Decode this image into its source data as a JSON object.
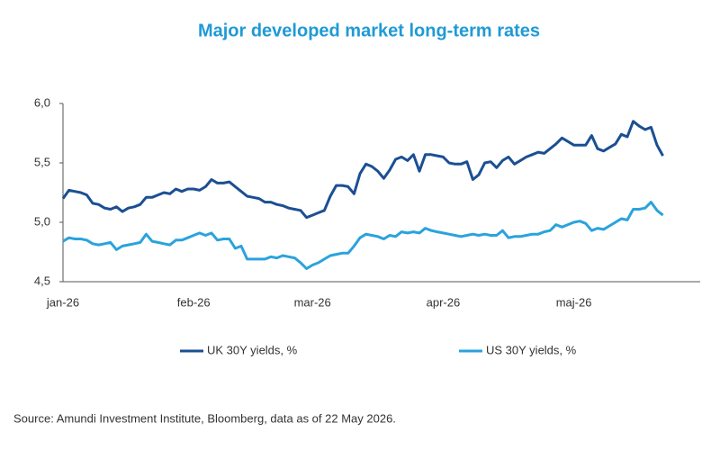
{
  "chart_data": {
    "type": "line",
    "title": "Major developed market long-term rates",
    "title_color": "#1f9ad6",
    "source": "Source:  Amundi  Investment  Institute,  Bloomberg,  data  as  of  22  May  2026.",
    "categories": [
      "jan-26",
      null,
      null,
      null,
      null,
      null,
      null,
      null,
      null,
      null,
      null,
      null,
      null,
      null,
      null,
      null,
      null,
      null,
      null,
      null,
      null,
      null,
      "feb-26",
      null,
      null,
      null,
      null,
      null,
      null,
      null,
      null,
      null,
      null,
      null,
      null,
      null,
      null,
      null,
      null,
      null,
      null,
      null,
      "mar-26",
      null,
      null,
      null,
      null,
      null,
      null,
      null,
      null,
      null,
      null,
      null,
      null,
      null,
      null,
      null,
      null,
      null,
      null,
      null,
      null,
      null,
      "apr-26",
      null,
      null,
      null,
      null,
      null,
      null,
      null,
      null,
      null,
      null,
      null,
      null,
      null,
      null,
      null,
      null,
      null,
      null,
      null,
      null,
      null,
      "maj-26",
      null,
      null,
      null,
      null,
      null,
      null,
      null,
      null,
      null,
      null,
      null,
      null,
      null,
      null,
      null
    ],
    "series": [
      {
        "name": "UK 30Y yields, %",
        "color": "#1b4f93",
        "values": [
          5.2,
          5.27,
          5.26,
          5.25,
          5.23,
          5.16,
          5.15,
          5.12,
          5.11,
          5.13,
          5.09,
          5.12,
          5.13,
          5.15,
          5.21,
          5.21,
          5.23,
          5.25,
          5.24,
          5.28,
          5.26,
          5.28,
          5.28,
          5.27,
          5.3,
          5.36,
          5.33,
          5.33,
          5.34,
          5.3,
          5.26,
          5.22,
          5.21,
          5.2,
          5.17,
          5.17,
          5.15,
          5.14,
          5.12,
          5.11,
          5.1,
          5.04,
          5.06,
          5.08,
          5.1,
          5.22,
          5.31,
          5.31,
          5.3,
          5.24,
          5.41,
          5.49,
          5.47,
          5.43,
          5.37,
          5.44,
          5.53,
          5.55,
          5.52,
          5.57,
          5.43,
          5.57,
          5.57,
          5.56,
          5.55,
          5.5,
          5.49,
          5.49,
          5.51,
          5.36,
          5.4,
          5.5,
          5.51,
          5.46,
          5.52,
          5.55,
          5.49,
          5.52,
          5.55,
          5.57,
          5.59,
          5.58,
          5.62,
          5.66,
          5.71,
          5.68,
          5.65,
          5.65,
          5.65,
          5.73,
          5.62,
          5.6,
          5.63,
          5.66,
          5.74,
          5.72,
          5.85,
          5.81,
          5.78,
          5.8,
          5.65,
          5.56
        ]
      },
      {
        "name": "US 30Y yields, %",
        "color": "#2aa3dc",
        "values": [
          4.84,
          4.87,
          4.86,
          4.86,
          4.85,
          4.82,
          4.81,
          4.82,
          4.83,
          4.77,
          4.8,
          4.81,
          4.82,
          4.83,
          4.9,
          4.84,
          4.83,
          4.82,
          4.81,
          4.85,
          4.85,
          4.87,
          4.89,
          4.91,
          4.89,
          4.91,
          4.85,
          4.86,
          4.86,
          4.78,
          4.8,
          4.69,
          4.69,
          4.69,
          4.69,
          4.71,
          4.7,
          4.72,
          4.71,
          4.7,
          4.66,
          4.61,
          4.64,
          4.66,
          4.69,
          4.72,
          4.73,
          4.74,
          4.74,
          4.8,
          4.87,
          4.9,
          4.89,
          4.88,
          4.86,
          4.89,
          4.88,
          4.92,
          4.91,
          4.92,
          4.91,
          4.95,
          4.93,
          4.92,
          4.91,
          4.9,
          4.89,
          4.88,
          4.89,
          4.9,
          4.89,
          4.9,
          4.89,
          4.89,
          4.93,
          4.87,
          4.88,
          4.88,
          4.89,
          4.9,
          4.9,
          4.92,
          4.93,
          4.98,
          4.96,
          4.98,
          5.0,
          5.01,
          4.99,
          4.93,
          4.95,
          4.94,
          4.97,
          5.0,
          5.03,
          5.02,
          5.11,
          5.11,
          5.12,
          5.17,
          5.1,
          5.06
        ]
      }
    ],
    "ylim": [
      4.5,
      6.0
    ],
    "yticks": [
      {
        "value": 4.5,
        "label": "4,5"
      },
      {
        "value": 5.0,
        "label": "5,0"
      },
      {
        "value": 5.5,
        "label": "5,5"
      },
      {
        "value": 6.0,
        "label": "6,0"
      }
    ],
    "grid": false
  }
}
